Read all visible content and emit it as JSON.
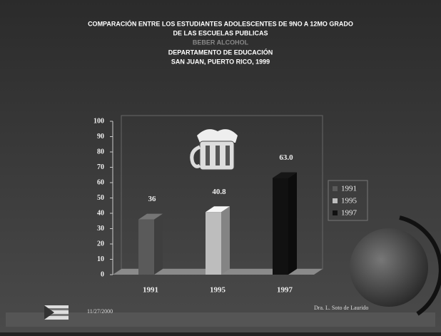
{
  "header": {
    "title_lines": [
      "COMPARACIÓN ENTRE LOS ESTUDIANTES ADOLESCENTES DE 9NO A 12MO GRADO",
      "DE LAS ESCUELAS PUBLICAS"
    ],
    "subtitle": "BEBER ALCOHOL",
    "org_lines": [
      "DEPARTAMENTO DE EDUCACIÓN",
      "SAN JUAN, PUERTO RICO, 1999"
    ]
  },
  "chart_data": {
    "type": "bar3d",
    "categories": [
      "1991",
      "1995",
      "1997"
    ],
    "values": [
      36,
      40.8,
      63.0
    ],
    "value_labels": [
      "36",
      "40.8",
      "63.0"
    ],
    "colors": [
      "#5a5a5a",
      "#bdbdbd",
      "#111111"
    ],
    "ylim": [
      0,
      100
    ],
    "yticks": [
      0,
      10,
      20,
      30,
      40,
      50,
      60,
      70,
      80,
      90,
      100
    ],
    "legend": "right"
  },
  "footer": {
    "date": "11/27/2000",
    "author": "Dra. L. Soto de Laurido"
  }
}
